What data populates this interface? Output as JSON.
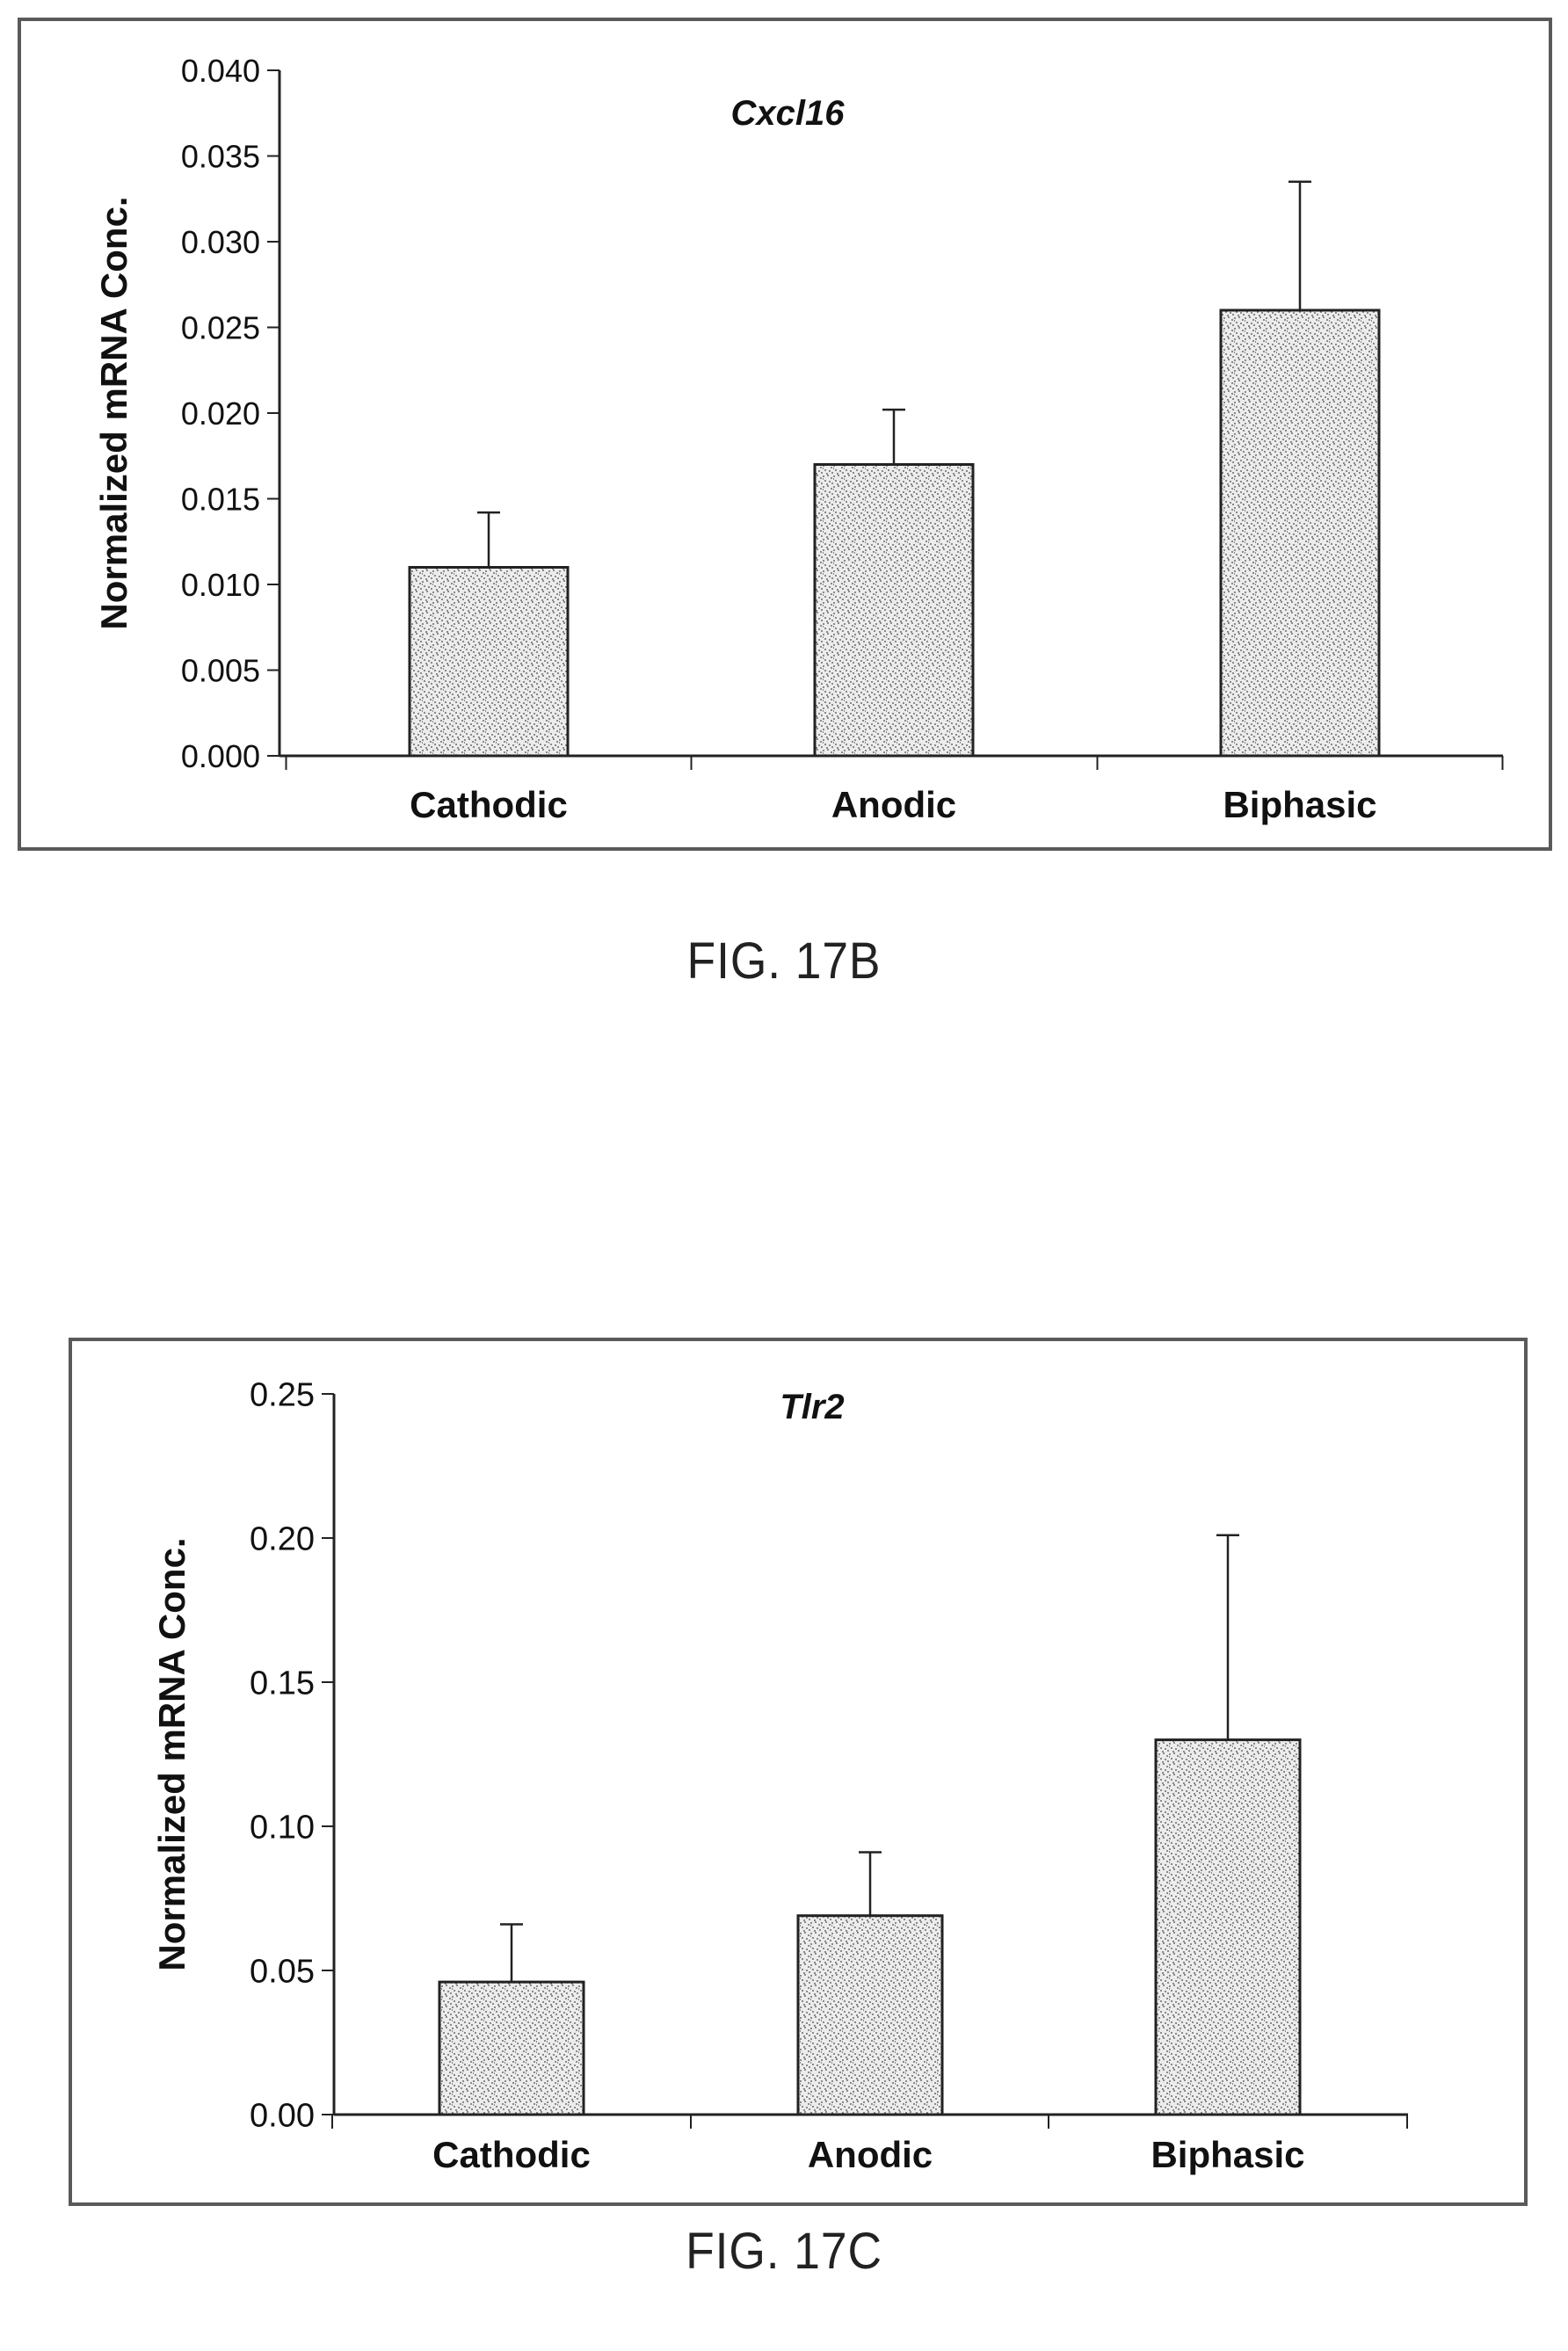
{
  "figures": [
    {
      "label": "FIG. 17B",
      "chart_data": {
        "type": "bar",
        "title": "Cxcl16",
        "xlabel": "",
        "ylabel": "Normalized mRNA Conc.",
        "categories": [
          "Cathodic",
          "Anodic",
          "Biphasic"
        ],
        "values": [
          0.011,
          0.017,
          0.026
        ],
        "error_upper": [
          0.0142,
          0.0202,
          0.0335
        ],
        "ylim": [
          0,
          0.04
        ],
        "yticks": [
          "0.000",
          "0.005",
          "0.010",
          "0.015",
          "0.020",
          "0.025",
          "0.030",
          "0.035",
          "0.040"
        ],
        "grid": false,
        "legend": "none",
        "bar_fill": "stippled grey"
      }
    },
    {
      "label": "FIG. 17C",
      "chart_data": {
        "type": "bar",
        "title": "Tlr2",
        "xlabel": "",
        "ylabel": "Normalized mRNA Conc.",
        "categories": [
          "Cathodic",
          "Anodic",
          "Biphasic"
        ],
        "values": [
          0.046,
          0.069,
          0.13
        ],
        "error_upper": [
          0.066,
          0.091,
          0.201
        ],
        "ylim": [
          0,
          0.25
        ],
        "yticks": [
          "0.00",
          "0.05",
          "0.10",
          "0.15",
          "0.20",
          "0.25"
        ],
        "grid": false,
        "legend": "none",
        "bar_fill": "stippled grey"
      }
    }
  ]
}
